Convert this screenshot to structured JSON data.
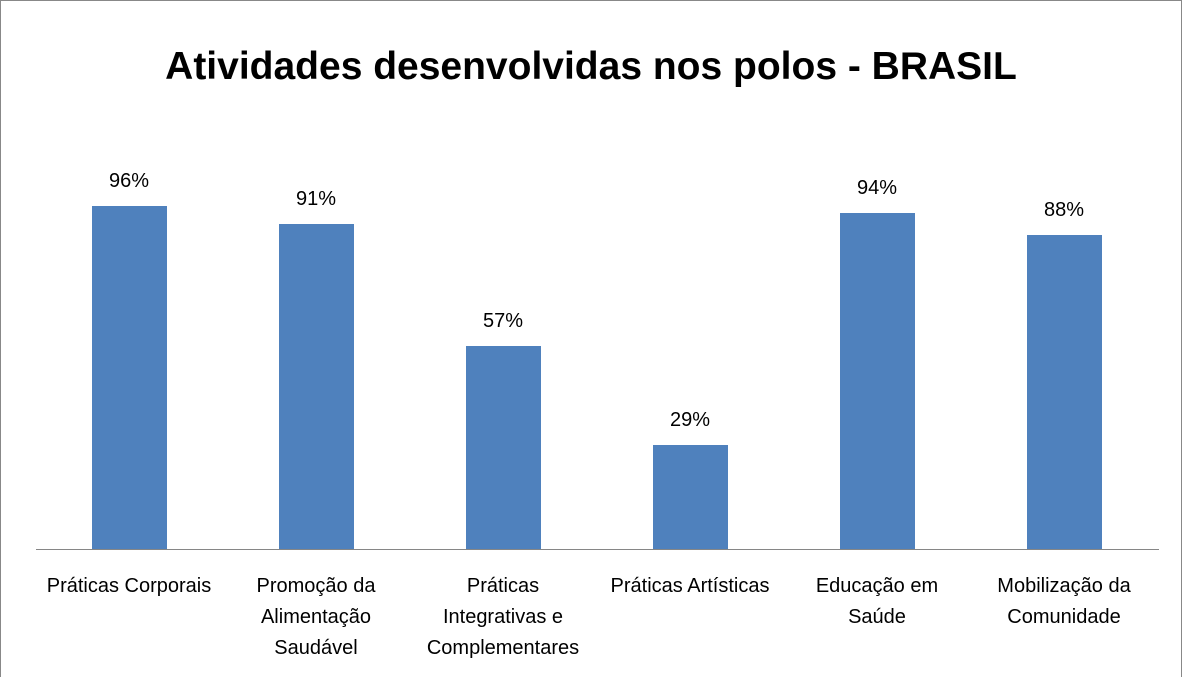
{
  "chart_data": {
    "type": "bar",
    "title": "Atividades desenvolvidas nos polos - BRASIL",
    "categories": [
      "Práticas Corporais",
      "Promoção da Alimentação Saudável",
      "Práticas Integrativas e Complementares",
      "Práticas Artísticas",
      "Educação em Saúde",
      "Mobilização da Comunidade"
    ],
    "values": [
      96,
      91,
      57,
      29,
      94,
      88
    ],
    "value_labels": [
      "96%",
      "91%",
      "57%",
      "29%",
      "94%",
      "88%"
    ],
    "color": "#4f81bd"
  }
}
